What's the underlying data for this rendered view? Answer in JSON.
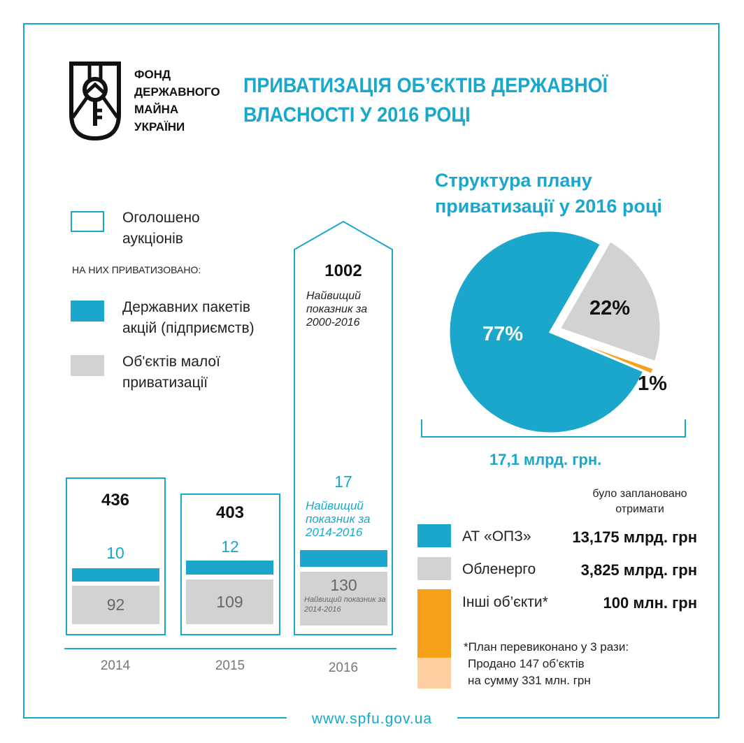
{
  "org": {
    "logo_lines": [
      "ФОНД",
      "ДЕРЖАВНОГО",
      "МАЙНА",
      "УКРАЇНИ"
    ]
  },
  "title": "ПРИВАТИЗАЦІЯ ОБ’ЄКТІВ ДЕРЖАВНОЇ ВЛАСНОСТІ У 2016 РОЦІ",
  "legend": {
    "announced": "Оголошено аукціонів",
    "subheading": "НА НИХ ПРИВАТИЗОВАНО:",
    "state_shares": "Державних пакетів акцій (підприємств)",
    "small_priv": "Об'єктів малої приватизації"
  },
  "colors": {
    "teal": "#1aa7cb",
    "gray": "#d1d2d4",
    "orange": "#f7a11a",
    "light_orange": "#fcd0a0"
  },
  "chart_data": [
    {
      "type": "bar",
      "categories": [
        "2014",
        "2015",
        "2016"
      ],
      "series": [
        {
          "name": "Оголошено аукціонів",
          "values": [
            436,
            403,
            1002
          ]
        },
        {
          "name": "Державних пакетів акцій (підприємств)",
          "values": [
            10,
            12,
            17
          ]
        },
        {
          "name": "Об'єктів малої приватизації",
          "values": [
            92,
            109,
            130
          ]
        }
      ],
      "annotations": {
        "announced_2016": "Найвищий показник за 2000-2016",
        "shares_2016": "Найвищий показник за 2014-2016",
        "small_2016": "Найвищий показник за 2014-2016"
      }
    },
    {
      "type": "pie",
      "title": "Структура плану приватизації у 2016 році",
      "slices": [
        {
          "label": "77%",
          "value": 77,
          "color": "#1aa7cb"
        },
        {
          "label": "22%",
          "value": 22,
          "color": "#d1d2d4"
        },
        {
          "label": "1%",
          "value": 1,
          "color": "#f7a11a"
        }
      ],
      "total": "17,1 млрд. грн."
    }
  ],
  "plan": {
    "heading": "було заплановано отримати",
    "rows": [
      {
        "label": "АТ «ОПЗ»",
        "value": "13,175 млрд. грн"
      },
      {
        "label": "Обленерго",
        "value": "3,825 млрд. грн"
      },
      {
        "label": "Інші об’єкти*",
        "value": "100 млн. грн"
      }
    ],
    "footnote": "*План перевиконано у 3 рази:",
    "footnote2": "Продано 147 об’єктів",
    "footnote3": "на сумму 331 млн. грн"
  },
  "footer": {
    "site": "www.spfu.gov.ua"
  }
}
